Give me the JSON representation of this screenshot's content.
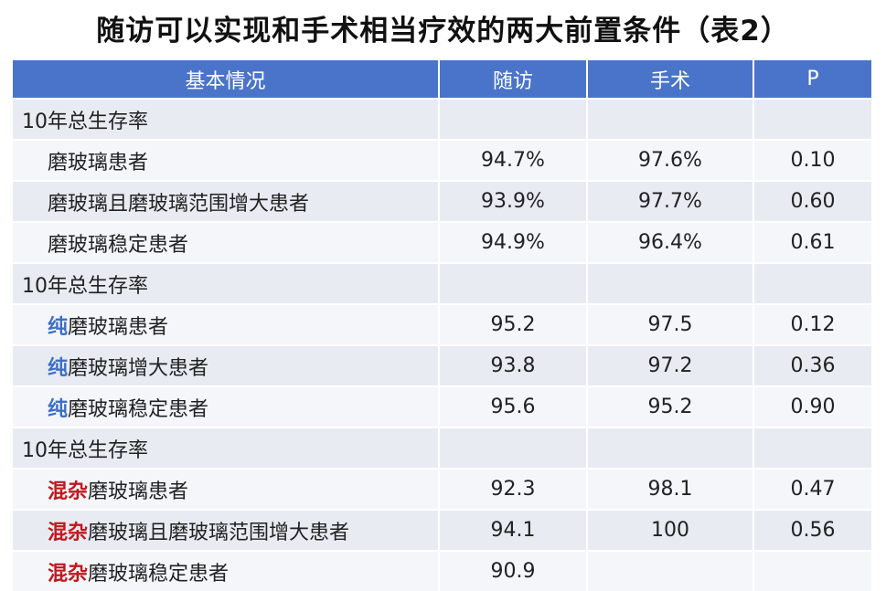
{
  "title": "随访可以实现和手术相当疗效的两大前置条件（表2）",
  "headers": [
    "基本情况",
    "随访",
    "手术",
    "P"
  ],
  "groups": [
    {
      "section": "10年总生存率",
      "rows": [
        {
          "prefix": "",
          "label": "磨玻璃患者",
          "followup": "94.7%",
          "surgery": "97.6%",
          "p": "0.10"
        },
        {
          "prefix": "",
          "label": "磨玻璃且磨玻璃范围增大患者",
          "followup": "93.9%",
          "surgery": "97.7%",
          "p": "0.60"
        },
        {
          "prefix": "",
          "label": "磨玻璃稳定患者",
          "followup": "94.9%",
          "surgery": "96.4%",
          "p": "0.61"
        }
      ]
    },
    {
      "section": "10年总生存率",
      "rows": [
        {
          "prefix": "纯",
          "label": "磨玻璃患者",
          "followup": "95.2",
          "surgery": "97.5",
          "p": "0.12"
        },
        {
          "prefix": "纯",
          "label": "磨玻璃增大患者",
          "followup": "93.8",
          "surgery": "97.2",
          "p": "0.36"
        },
        {
          "prefix": "纯",
          "label": "磨玻璃稳定患者",
          "followup": "95.6",
          "surgery": "95.2",
          "p": "0.90"
        }
      ]
    },
    {
      "section": "10年总生存率",
      "rows": [
        {
          "prefix": "混杂",
          "label": "磨玻璃患者",
          "followup": "92.3",
          "surgery": "98.1",
          "p": "0.47"
        },
        {
          "prefix": "混杂",
          "label": "磨玻璃且磨玻璃范围增大患者",
          "followup": "94.1",
          "surgery": "100",
          "p": "0.56"
        },
        {
          "prefix": "混杂",
          "label": "磨玻璃稳定患者",
          "followup": "90.9",
          "surgery": "",
          "p": ""
        }
      ]
    }
  ],
  "colors": {
    "header_bg": "#4a74c9",
    "pure_prefix": "#3d6fc5",
    "mixed_prefix": "#c0181e"
  }
}
